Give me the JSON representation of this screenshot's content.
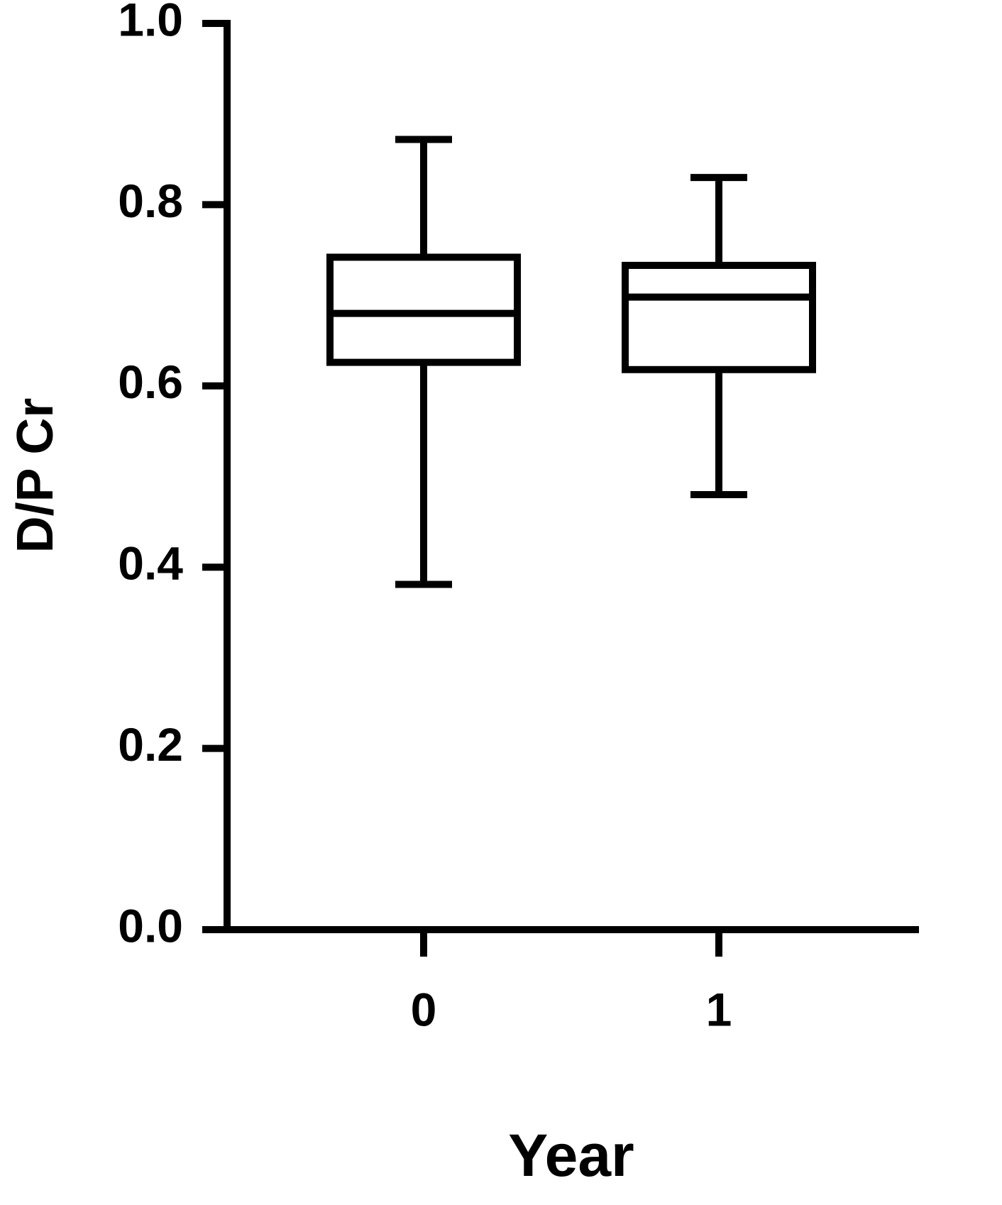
{
  "chart_data": {
    "type": "box",
    "y_label": "D/P Cr",
    "x_label": "Year",
    "categories": [
      "0",
      "1"
    ],
    "boxes": [
      {
        "whislo": 0.381,
        "q1": 0.626,
        "med": 0.68,
        "q3": 0.742,
        "whishi": 0.872
      },
      {
        "whislo": 0.48,
        "q1": 0.618,
        "med": 0.698,
        "q3": 0.733,
        "whishi": 0.83
      }
    ],
    "color": "#000000",
    "ylim": [
      0,
      1
    ],
    "yticks": [
      {
        "value": 0,
        "label": "0.0"
      },
      0.2,
      0.4,
      0.6,
      0.8,
      {
        "value": 1,
        "label": "1.0"
      }
    ]
  }
}
